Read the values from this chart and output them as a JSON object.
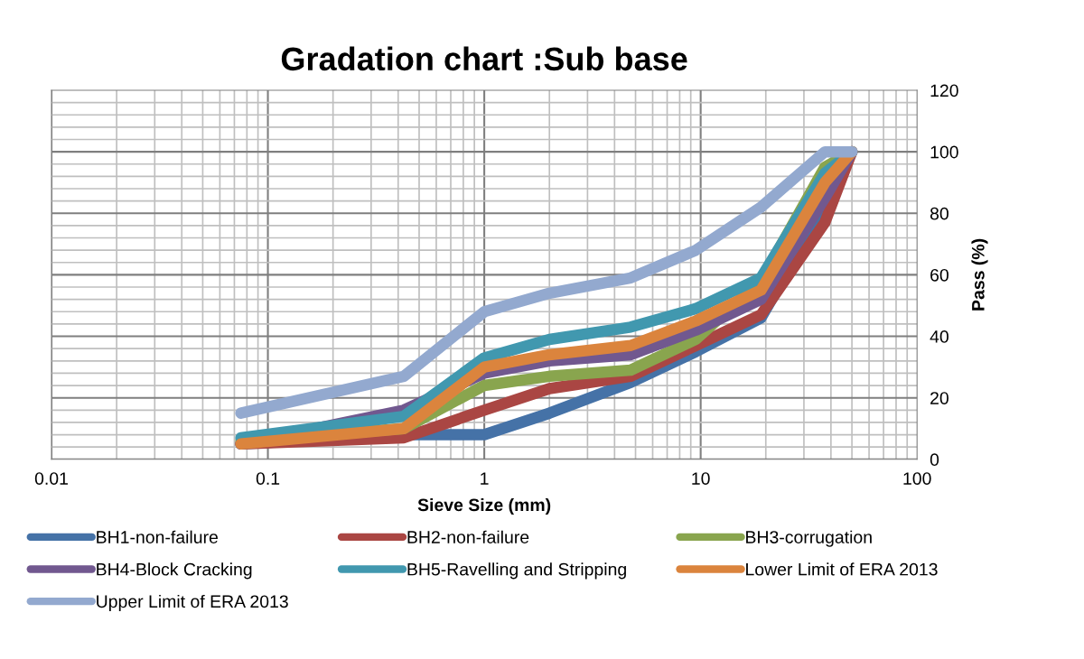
{
  "chart_data": {
    "type": "line",
    "title": "Gradation chart :Sub base",
    "xlabel": "Sieve Size (mm)",
    "ylabel": "Pass (%)",
    "x": [
      0.075,
      0.425,
      1,
      2,
      4.75,
      9.5,
      19,
      37.5,
      50
    ],
    "series": [
      {
        "name": "BH1-non-failure",
        "color": "#4572a7",
        "values": [
          5,
          8,
          8,
          15,
          25,
          35,
          46,
          82,
          100
        ]
      },
      {
        "name": "BH2-non-failure",
        "color": "#aa4643",
        "values": [
          5,
          7,
          16,
          23,
          27,
          37,
          47,
          77,
          100
        ]
      },
      {
        "name": "BH3-corrugation",
        "color": "#89a54e",
        "values": [
          6,
          10,
          24,
          27,
          29,
          39,
          58,
          95,
          100
        ]
      },
      {
        "name": "BH4-Block Cracking",
        "color": "#71588f",
        "values": [
          5,
          16,
          28,
          32,
          34,
          42,
          52,
          85,
          100
        ]
      },
      {
        "name": "BH5-Ravelling and Stripping",
        "color": "#4198af",
        "values": [
          7,
          14,
          33,
          39,
          43,
          49,
          59,
          93,
          100
        ]
      },
      {
        "name": "Lower Limit of ERA 2013",
        "color": "#db843d",
        "values": [
          5,
          10,
          30,
          34,
          37,
          45,
          55,
          90,
          100
        ]
      },
      {
        "name": "Upper Limit of ERA 2013",
        "color": "#93a9cf",
        "values": [
          15,
          27,
          48,
          54,
          59,
          68,
          82,
          100,
          100
        ]
      }
    ],
    "log": "x",
    "xlim": [
      0.01,
      100
    ],
    "xticks": [
      0.01,
      0.1,
      1,
      10,
      100
    ],
    "ylim": [
      0,
      120
    ],
    "yticks": [
      0,
      20,
      40,
      60,
      80,
      100,
      120
    ],
    "grid": true,
    "legend": "bottom",
    "line_style": "solid"
  }
}
